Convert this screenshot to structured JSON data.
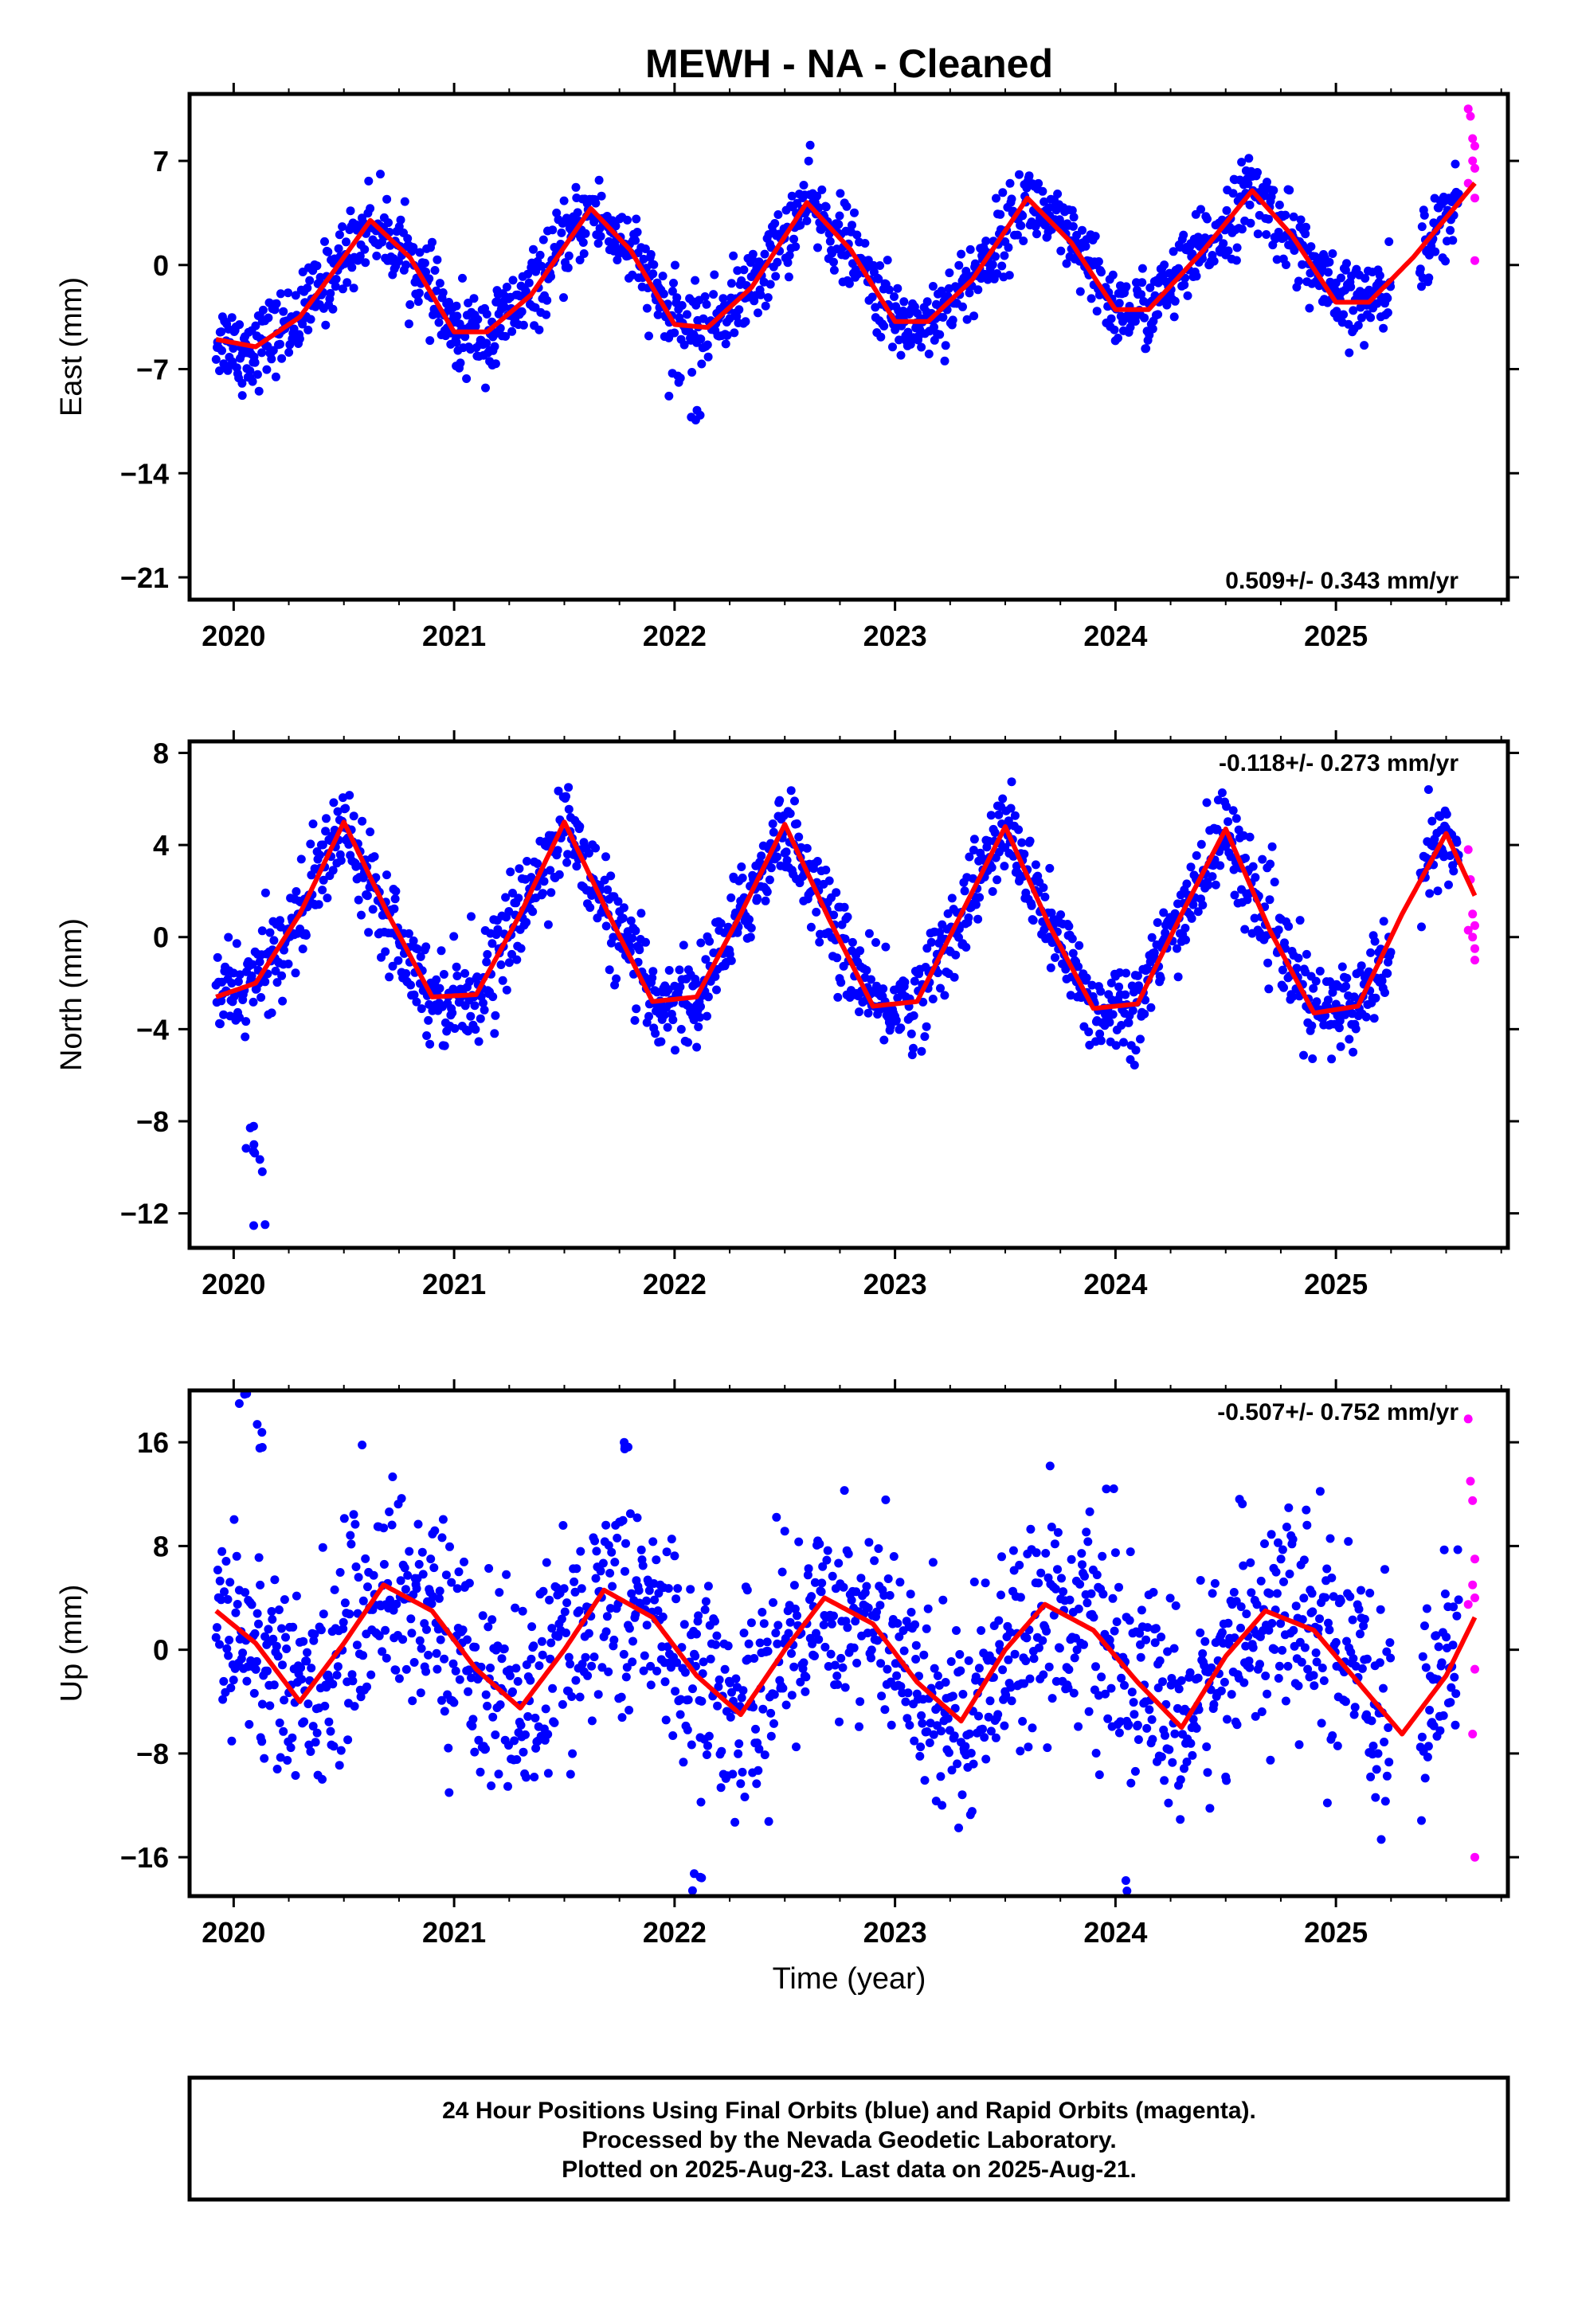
{
  "title": "MEWH  - NA - Cleaned",
  "colors": {
    "final_orbits": "#0000ff",
    "rapid_orbits": "#ff00ff",
    "model_fit": "#ff0000",
    "frame": "#000000"
  },
  "chart_data": [
    {
      "type": "scatter",
      "component": "East",
      "ylabel": "East (mm)",
      "xlabel": "",
      "rate_text": "0.509+/- 0.343 mm/yr",
      "rate_position": "bottom-right",
      "xlim": [
        2019.8,
        2025.78
      ],
      "ylim": [
        -22.5,
        11.5
      ],
      "xticks": [
        2020,
        2021,
        2022,
        2023,
        2024,
        2025
      ],
      "xtick_labels": [
        "2020",
        "2021",
        "2022",
        "2023",
        "2024",
        "2025"
      ],
      "yticks": [
        7,
        0,
        -7,
        -14,
        -21
      ],
      "ytick_labels": [
        "7",
        "0",
        "−7",
        "−14",
        "−21"
      ],
      "grid": false,
      "series": [
        {
          "role": "final",
          "x_range": [
            2019.92,
            2025.56
          ],
          "seasonal_amplitude": 3.8,
          "seasonal_peak_phase": 0.62,
          "scatter": 1.3,
          "dips": [
            [
              2020.05,
              2021.02,
              2021.18,
              2022.0,
              2022.1
            ],
            [
              -8,
              -6,
              -6,
              -8,
              -10
            ]
          ]
        },
        {
          "role": "rapid",
          "points_x": [
            2025.6,
            2025.61,
            2025.62,
            2025.63,
            2025.62,
            2025.63,
            2025.6,
            2025.63,
            2025.63
          ],
          "points_y": [
            10.5,
            10.0,
            8.5,
            8.0,
            7.0,
            6.5,
            5.5,
            4.5,
            0.3
          ]
        }
      ],
      "model_fit": {
        "x": [
          2019.92,
          2020.1,
          2020.3,
          2020.45,
          2020.62,
          2020.8,
          2021.0,
          2021.15,
          2021.35,
          2021.62,
          2021.8,
          2022.0,
          2022.15,
          2022.35,
          2022.6,
          2022.8,
          2023.0,
          2023.15,
          2023.35,
          2023.6,
          2023.8,
          2024.0,
          2024.15,
          2024.4,
          2024.62,
          2024.8,
          2025.0,
          2025.15,
          2025.35,
          2025.63
        ],
        "y": [
          -5.0,
          -5.5,
          -3.5,
          -0.5,
          3.0,
          0.5,
          -4.5,
          -4.5,
          -2.0,
          3.8,
          1.0,
          -4.0,
          -4.2,
          -1.5,
          4.2,
          1.0,
          -3.8,
          -3.8,
          -1.0,
          4.5,
          1.5,
          -3.0,
          -3.0,
          1.0,
          5.0,
          2.0,
          -2.5,
          -2.5,
          0.5,
          5.5
        ]
      }
    },
    {
      "type": "scatter",
      "component": "North",
      "ylabel": "North (mm)",
      "xlabel": "",
      "rate_text": "-0.118+/- 0.273 mm/yr",
      "rate_position": "top-right",
      "xlim": [
        2019.8,
        2025.78
      ],
      "ylim": [
        -13.5,
        8.5
      ],
      "xticks": [
        2020,
        2021,
        2022,
        2023,
        2024,
        2025
      ],
      "xtick_labels": [
        "2020",
        "2021",
        "2022",
        "2023",
        "2024",
        "2025"
      ],
      "yticks": [
        8,
        4,
        0,
        -4,
        -8,
        -12
      ],
      "ytick_labels": [
        "8",
        "4",
        "0",
        "−4",
        "−8",
        "−12"
      ],
      "grid": false,
      "series": [
        {
          "role": "final",
          "x_range": [
            2019.92,
            2025.56
          ],
          "seasonal_amplitude": 4.0,
          "seasonal_peak_phase": 0.5,
          "scatter": 1.0,
          "dips": [
            [
              2020.07,
              2020.1,
              2020.12,
              2021.95,
              2022.1
            ],
            [
              -8.5,
              -9.8,
              -12.9,
              -3.0,
              -4.0
            ]
          ]
        },
        {
          "role": "rapid",
          "points_x": [
            2025.6,
            2025.61,
            2025.62,
            2025.63,
            2025.62,
            2025.63,
            2025.6,
            2025.63
          ],
          "points_y": [
            3.8,
            2.5,
            1.0,
            0.5,
            0.0,
            -0.5,
            0.3,
            -1.0
          ]
        }
      ],
      "model_fit": {
        "x": [
          2019.92,
          2020.1,
          2020.3,
          2020.5,
          2020.7,
          2020.9,
          2021.1,
          2021.3,
          2021.5,
          2021.7,
          2021.9,
          2022.1,
          2022.3,
          2022.5,
          2022.7,
          2022.9,
          2023.1,
          2023.3,
          2023.5,
          2023.7,
          2023.9,
          2024.1,
          2024.3,
          2024.5,
          2024.7,
          2024.9,
          2025.1,
          2025.3,
          2025.5,
          2025.63
        ],
        "y": [
          -2.6,
          -2.0,
          1.0,
          5.0,
          1.0,
          -2.6,
          -2.5,
          1.0,
          5.0,
          1.0,
          -2.8,
          -2.6,
          1.0,
          4.9,
          0.8,
          -3.0,
          -2.8,
          1.0,
          4.8,
          0.5,
          -3.1,
          -2.9,
          1.0,
          4.7,
          0.3,
          -3.3,
          -3.0,
          1.0,
          4.5,
          1.8
        ]
      }
    },
    {
      "type": "scatter",
      "component": "Up",
      "ylabel": "Up (mm)",
      "xlabel": "Time (year)",
      "rate_text": "-0.507+/- 0.752 mm/yr",
      "rate_position": "top-right",
      "xlim": [
        2019.8,
        2025.78
      ],
      "ylim": [
        -19,
        20
      ],
      "xticks": [
        2020,
        2021,
        2022,
        2023,
        2024,
        2025
      ],
      "xtick_labels": [
        "2020",
        "2021",
        "2022",
        "2023",
        "2024",
        "2025"
      ],
      "yticks": [
        16,
        8,
        0,
        -8,
        -16
      ],
      "ytick_labels": [
        "16",
        "8",
        "0",
        "−8",
        "−16"
      ],
      "grid": false,
      "series": [
        {
          "role": "final",
          "x_range": [
            2019.92,
            2025.56
          ],
          "seasonal_amplitude": 4.5,
          "seasonal_peak_phase": 0.68,
          "scatter": 4.0,
          "dips": [
            [
              2020.05,
              2020.1,
              2021.8,
              2022.1,
              2024.05
            ],
            [
              19.5,
              16.5,
              16.0,
              -18.0,
              -18.5
            ]
          ]
        },
        {
          "role": "rapid",
          "points_x": [
            2025.6,
            2025.61,
            2025.62,
            2025.63,
            2025.62,
            2025.63,
            2025.6,
            2025.63,
            2025.62,
            2025.63
          ],
          "points_y": [
            17.8,
            13.0,
            11.5,
            7.0,
            5.0,
            4.0,
            3.5,
            -1.5,
            -6.5,
            -16.0
          ]
        }
      ],
      "model_fit": {
        "x": [
          2019.92,
          2020.1,
          2020.3,
          2020.5,
          2020.68,
          2020.9,
          2021.1,
          2021.3,
          2021.5,
          2021.68,
          2021.9,
          2022.1,
          2022.3,
          2022.5,
          2022.68,
          2022.9,
          2023.1,
          2023.3,
          2023.5,
          2023.68,
          2023.9,
          2024.1,
          2024.3,
          2024.5,
          2024.68,
          2024.9,
          2025.1,
          2025.3,
          2025.5,
          2025.63
        ],
        "y": [
          3.0,
          0.5,
          -4.0,
          0.5,
          5.0,
          3.0,
          -1.5,
          -4.5,
          0.0,
          4.6,
          2.5,
          -2.0,
          -5.0,
          0.0,
          4.0,
          2.0,
          -2.5,
          -5.5,
          0.0,
          3.5,
          1.5,
          -2.5,
          -6.0,
          -0.5,
          3.0,
          1.5,
          -2.5,
          -6.5,
          -2.0,
          2.5
        ]
      }
    }
  ],
  "footer": {
    "line1": "24 Hour Positions Using Final Orbits (blue) and Rapid Orbits (magenta).",
    "line2": "Processed by the Nevada Geodetic Laboratory.",
    "line3": "Plotted on 2025-Aug-23. Last data on 2025-Aug-21."
  }
}
